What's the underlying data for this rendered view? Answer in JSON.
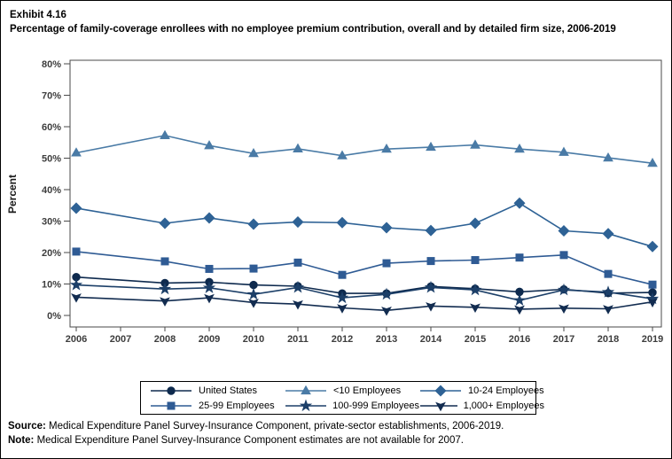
{
  "header": {
    "exhibit": "Exhibit 4.16",
    "title": "Percentage of family-coverage enrollees with no employee premium contribution, overall and by detailed firm size, 2006-2019"
  },
  "footer": {
    "source_label": "Source:",
    "source_text": " Medical Expenditure Panel Survey-Insurance Component, private-sector establishments, 2006-2019.",
    "note_label": "Note:",
    "note_text": " Medical Expenditure Panel Survey-Insurance Component estimates are not available for 2007."
  },
  "chart_data": {
    "type": "line",
    "title": "Percentage of family-coverage enrollees with no employee premium contribution, overall and by detailed firm size, 2006-2019",
    "xlabel": "",
    "ylabel": "Percent",
    "ylim": [
      0,
      80
    ],
    "ytick_step": 10,
    "ytick_suffix": "%",
    "grid": false,
    "legend_position": "bottom",
    "missing_data_note": "2007 estimates not available; lines connect 2006 to 2008",
    "x": [
      2006,
      2007,
      2008,
      2009,
      2010,
      2011,
      2012,
      2013,
      2014,
      2015,
      2016,
      2017,
      2018,
      2019
    ],
    "series": [
      {
        "name": "United States",
        "marker": "circle",
        "color": "#0e2a4e",
        "values": [
          12.2,
          null,
          10.3,
          10.6,
          9.7,
          9.3,
          7.0,
          7.0,
          9.2,
          8.5,
          7.5,
          8.3,
          7.1,
          7.3
        ]
      },
      {
        "name": "<10 Employees",
        "marker": "triangle",
        "color": "#4a7ba6",
        "values": [
          51.7,
          null,
          57.2,
          54.0,
          51.5,
          53.0,
          50.8,
          52.9,
          53.5,
          54.2,
          52.9,
          51.9,
          50.1,
          48.4
        ]
      },
      {
        "name": "10-24 Employees",
        "marker": "diamond",
        "color": "#2e6295",
        "values": [
          34.1,
          null,
          29.3,
          31.0,
          29.0,
          29.7,
          29.5,
          27.9,
          27.0,
          29.3,
          35.7,
          26.9,
          26.0,
          21.9
        ]
      },
      {
        "name": "25-99 Employees",
        "marker": "square",
        "color": "#2f5b94",
        "values": [
          20.3,
          null,
          17.2,
          14.8,
          14.9,
          16.8,
          12.9,
          16.6,
          17.3,
          17.6,
          18.4,
          19.2,
          13.2,
          9.8
        ]
      },
      {
        "name": "100-999 Employees",
        "marker": "star",
        "color": "#1c3f68",
        "values": [
          9.7,
          null,
          8.4,
          8.8,
          6.7,
          8.9,
          5.6,
          6.7,
          8.9,
          8.1,
          4.8,
          8.1,
          7.4,
          5.3
        ]
      },
      {
        "name": "1,000+ Employees",
        "marker": "pennant",
        "color": "#122c50",
        "values": [
          5.8,
          null,
          4.6,
          5.6,
          4.1,
          3.6,
          2.4,
          1.6,
          3.0,
          2.6,
          2.0,
          2.3,
          2.1,
          4.3
        ]
      }
    ]
  }
}
